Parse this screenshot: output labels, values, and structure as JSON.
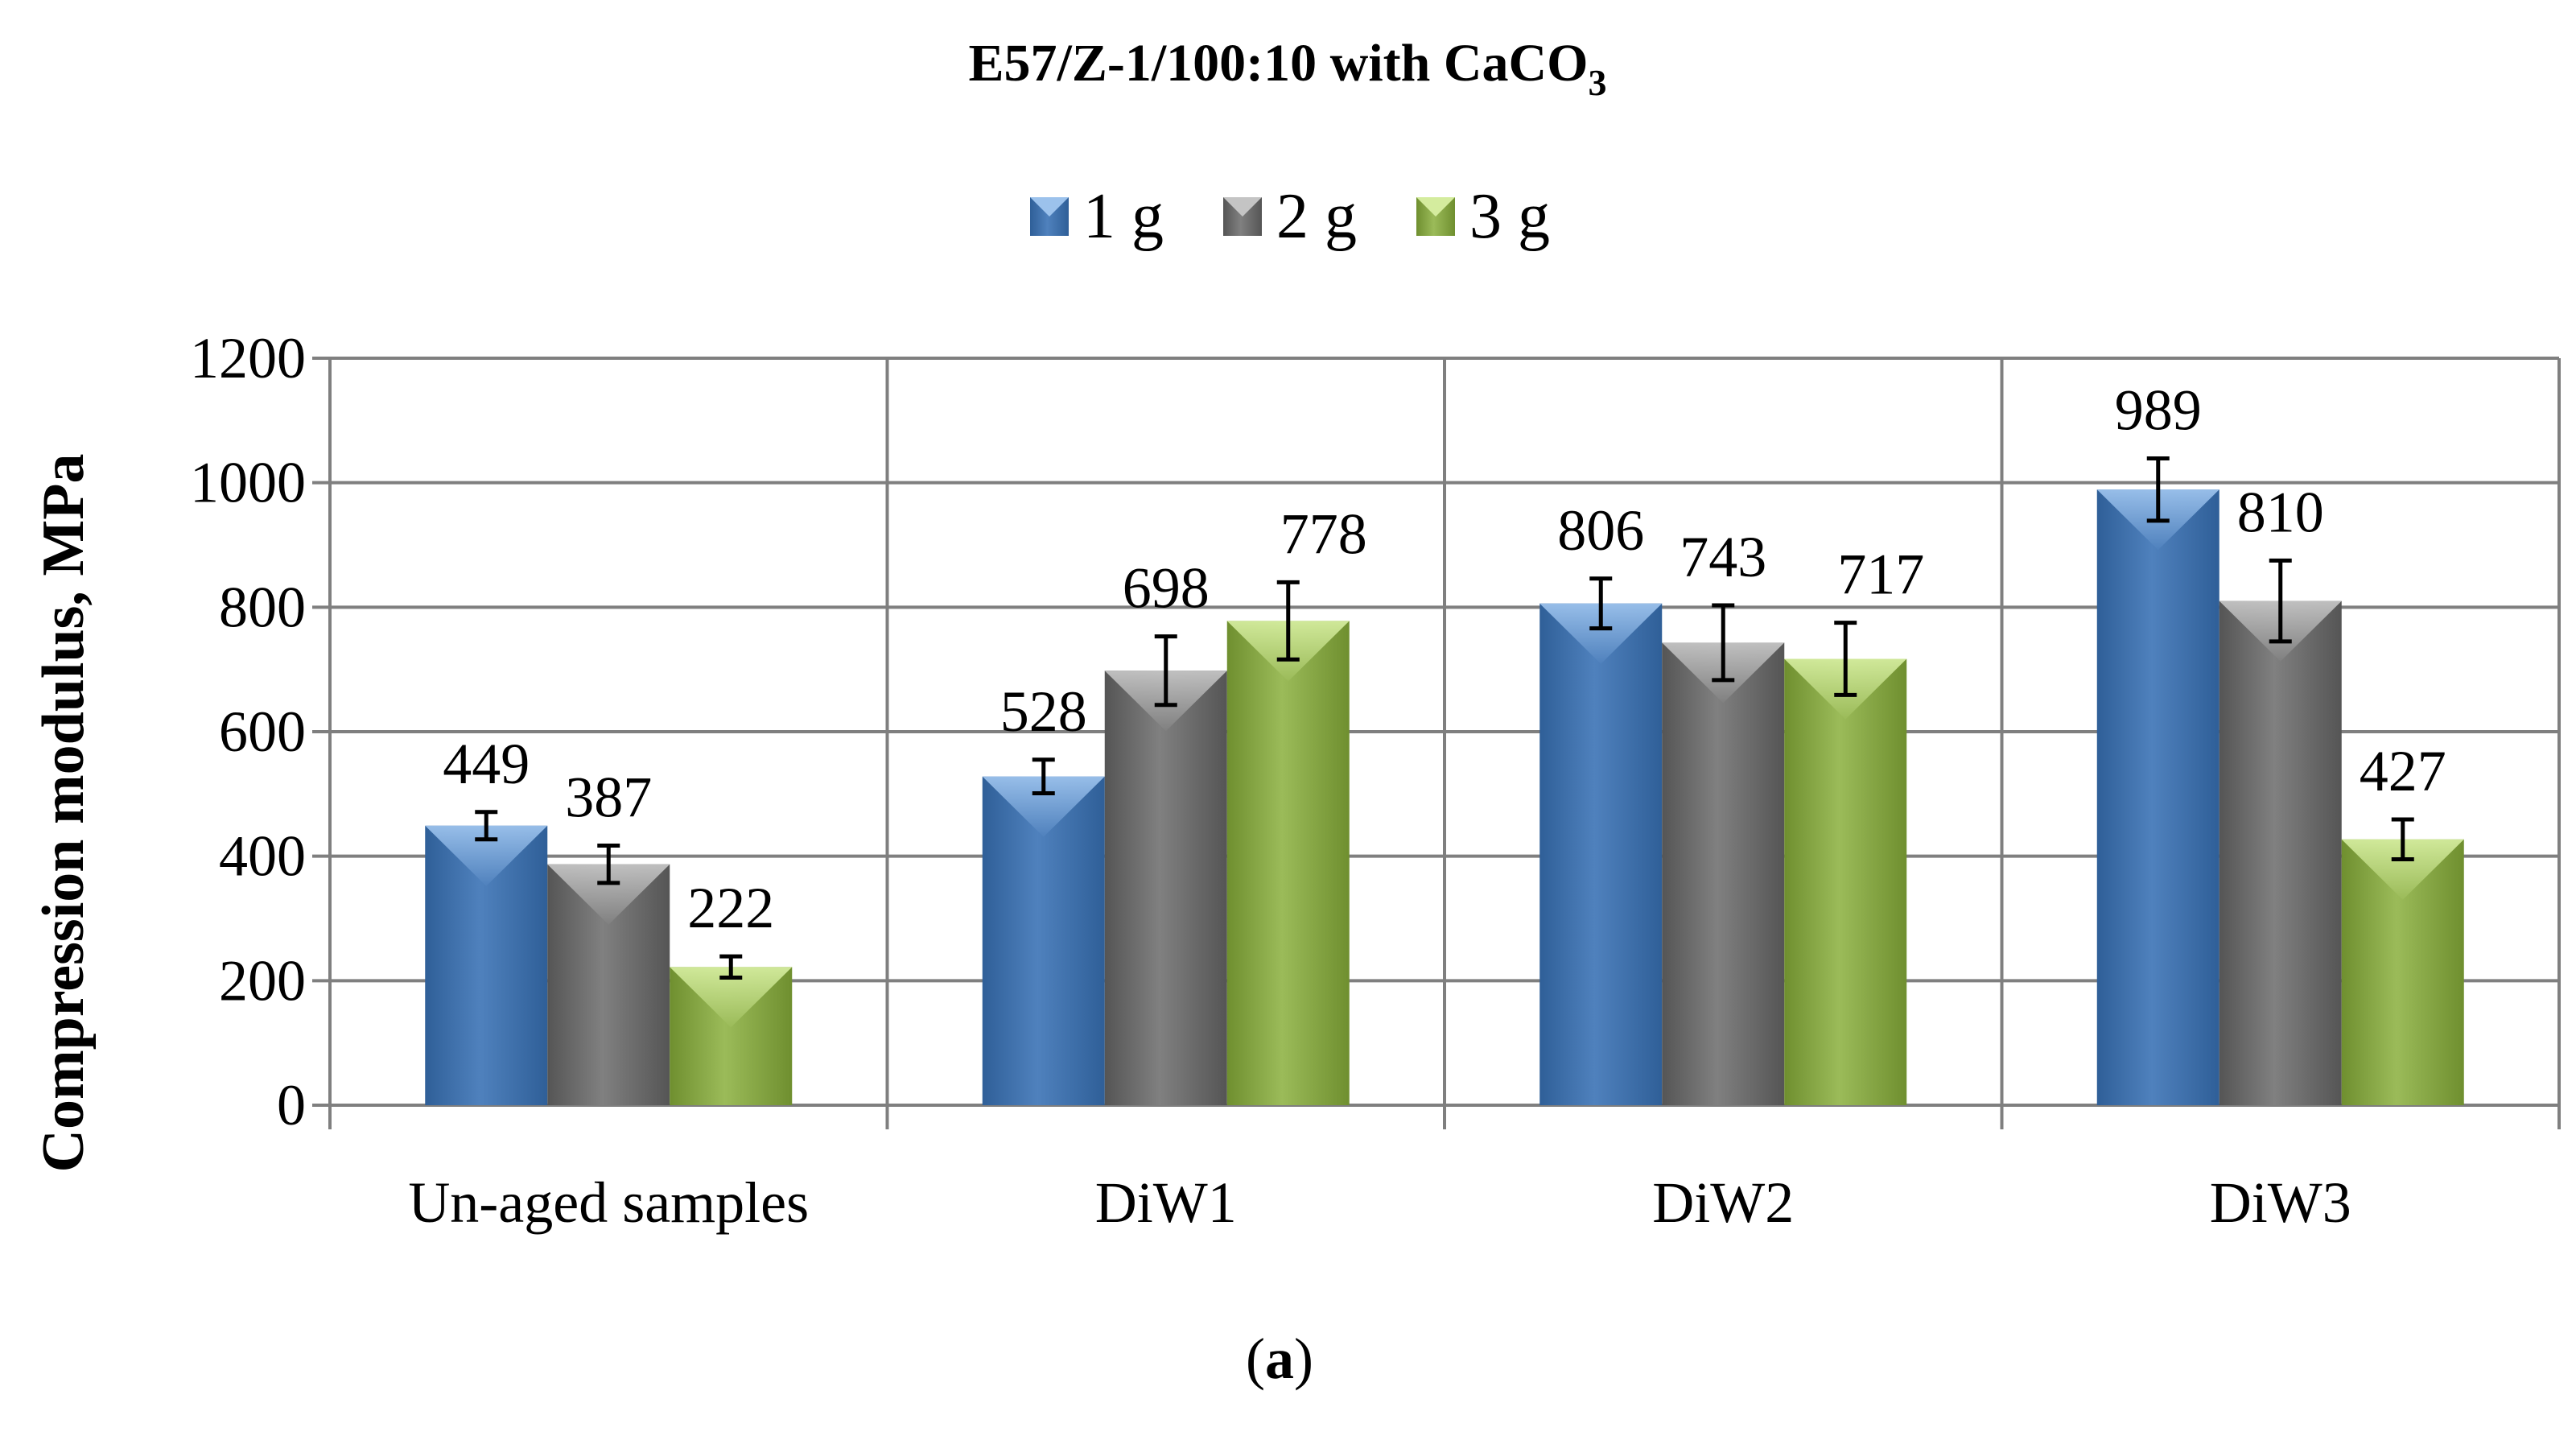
{
  "chart_data": {
    "type": "bar",
    "title": {
      "main": "E57/Z-1/100:10 with CaCO",
      "subscript": "3"
    },
    "xlabel": "",
    "ylabel": "Compression modulus, MPa",
    "ylim": [
      0,
      1200
    ],
    "yticks": [
      0,
      200,
      400,
      600,
      800,
      1000,
      1200
    ],
    "grid": true,
    "legend_position": "top-center",
    "categories": [
      "Un-aged samples",
      "DiW1",
      "DiW2",
      "DiW3"
    ],
    "series": [
      {
        "name": "1 g",
        "values": [
          449,
          528,
          806,
          989
        ],
        "errors": [
          22,
          27,
          40,
          50
        ]
      },
      {
        "name": "2 g",
        "values": [
          387,
          698,
          743,
          810
        ],
        "errors": [
          30,
          55,
          60,
          65
        ]
      },
      {
        "name": "3 g",
        "values": [
          222,
          778,
          717,
          427
        ],
        "errors": [
          17,
          62,
          58,
          32
        ]
      }
    ],
    "caption": {
      "prefix": "(",
      "letter": "a",
      "suffix": ")"
    }
  },
  "colors": {
    "series": [
      "#4f81bd",
      "#808080",
      "#9bbb59"
    ],
    "series_light": [
      "#9cc2ec",
      "#c4c4c4",
      "#d4ec9e"
    ],
    "series_dark": [
      "#2f5f98",
      "#555555",
      "#6f8f2f"
    ],
    "grid": "#7f7f7f",
    "text": "#000000"
  }
}
